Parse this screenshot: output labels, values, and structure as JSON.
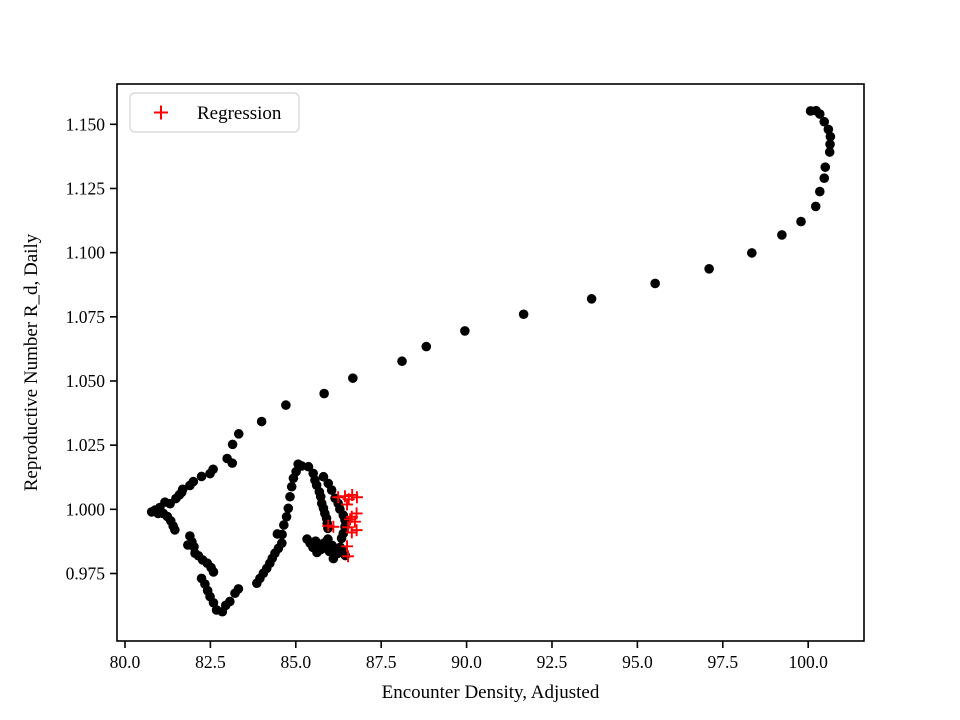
{
  "chart_data": {
    "type": "scatter",
    "title": "",
    "xlabel": "Encounter Density, Adjusted",
    "ylabel": "Reproductive Number R_d, Daily",
    "xlim": [
      79.766,
      101.634
    ],
    "ylim": [
      0.9487,
      1.1657
    ],
    "grid": false,
    "legend": {
      "position": "upper-left",
      "entries": [
        {
          "label": "Regression",
          "marker": "plus",
          "color": "#ff0000"
        }
      ]
    },
    "xticks": [
      {
        "v": 80.0,
        "label": "80.0"
      },
      {
        "v": 82.5,
        "label": "82.5"
      },
      {
        "v": 85.0,
        "label": "85.0"
      },
      {
        "v": 87.5,
        "label": "87.5"
      },
      {
        "v": 90.0,
        "label": "90.0"
      },
      {
        "v": 92.5,
        "label": "92.5"
      },
      {
        "v": 95.0,
        "label": "95.0"
      },
      {
        "v": 97.5,
        "label": "97.5"
      },
      {
        "v": 100.0,
        "label": "100.0"
      }
    ],
    "yticks": [
      {
        "v": 0.975,
        "label": "0.975"
      },
      {
        "v": 1.0,
        "label": "1.000"
      },
      {
        "v": 1.025,
        "label": "1.025"
      },
      {
        "v": 1.05,
        "label": "1.050"
      },
      {
        "v": 1.075,
        "label": "1.075"
      },
      {
        "v": 1.1,
        "label": "1.100"
      },
      {
        "v": 1.125,
        "label": "1.125"
      },
      {
        "v": 1.15,
        "label": "1.150"
      }
    ],
    "series": [
      {
        "name": "trajectory",
        "marker": "circle",
        "color": "#000000",
        "marker_radius": 4.8,
        "points": [
          [
            100.07,
            1.1552
          ],
          [
            100.23,
            1.1553
          ],
          [
            100.34,
            1.154
          ],
          [
            100.47,
            1.151
          ],
          [
            100.59,
            1.148
          ],
          [
            100.65,
            1.1452
          ],
          [
            100.64,
            1.1422
          ],
          [
            100.63,
            1.1392
          ],
          [
            100.5,
            1.1333
          ],
          [
            100.47,
            1.129
          ],
          [
            100.34,
            1.1238
          ],
          [
            100.22,
            1.118
          ],
          [
            99.79,
            1.1121
          ],
          [
            99.23,
            1.1069
          ],
          [
            98.35,
            1.0999
          ],
          [
            97.1,
            1.0937
          ],
          [
            95.52,
            1.088
          ],
          [
            93.66,
            1.082
          ],
          [
            91.67,
            1.076
          ],
          [
            89.95,
            1.0695
          ],
          [
            88.82,
            1.0634
          ],
          [
            88.11,
            1.0577
          ],
          [
            86.67,
            1.0511
          ],
          [
            85.83,
            1.0451
          ],
          [
            84.71,
            1.0406
          ],
          [
            84.0,
            1.0342
          ],
          [
            83.33,
            1.0294
          ],
          [
            83.15,
            1.0253
          ],
          [
            82.99,
            1.0198
          ],
          [
            83.14,
            1.018
          ],
          [
            82.58,
            1.0156
          ],
          [
            82.49,
            1.0139
          ],
          [
            82.24,
            1.0128
          ],
          [
            82.0,
            1.0108
          ],
          [
            81.9,
            1.0093
          ],
          [
            81.69,
            1.0078
          ],
          [
            81.66,
            1.0066
          ],
          [
            81.59,
            1.0056
          ],
          [
            81.49,
            1.0042
          ],
          [
            81.32,
            1.0022
          ],
          [
            81.17,
            1.0028
          ],
          [
            81.02,
            1.0007
          ],
          [
            80.88,
            0.9997
          ],
          [
            80.78,
            0.999
          ],
          [
            80.97,
            0.9984
          ],
          [
            81.12,
            0.9984
          ],
          [
            81.24,
            0.9972
          ],
          [
            81.34,
            0.9955
          ],
          [
            81.41,
            0.9935
          ],
          [
            81.46,
            0.992
          ],
          [
            81.9,
            0.9896
          ],
          [
            81.84,
            0.9861
          ],
          [
            81.96,
            0.9873
          ],
          [
            82.02,
            0.9854
          ],
          [
            82.05,
            0.9829
          ],
          [
            82.15,
            0.9819
          ],
          [
            82.27,
            0.9803
          ],
          [
            82.41,
            0.979
          ],
          [
            82.52,
            0.9773
          ],
          [
            82.59,
            0.9756
          ],
          [
            82.24,
            0.9731
          ],
          [
            82.34,
            0.9709
          ],
          [
            82.42,
            0.9683
          ],
          [
            82.49,
            0.966
          ],
          [
            82.59,
            0.9636
          ],
          [
            82.68,
            0.9608
          ],
          [
            82.85,
            0.9601
          ],
          [
            82.95,
            0.9626
          ],
          [
            83.07,
            0.9641
          ],
          [
            83.22,
            0.9673
          ],
          [
            83.32,
            0.969
          ],
          [
            83.86,
            0.9712
          ],
          [
            83.95,
            0.9731
          ],
          [
            84.05,
            0.9751
          ],
          [
            84.15,
            0.977
          ],
          [
            84.24,
            0.979
          ],
          [
            84.31,
            0.9809
          ],
          [
            84.39,
            0.9829
          ],
          [
            84.49,
            0.9848
          ],
          [
            84.59,
            0.9868
          ],
          [
            84.46,
            0.9904
          ],
          [
            84.6,
            0.9902
          ],
          [
            84.65,
            0.9939
          ],
          [
            84.73,
            0.9971
          ],
          [
            84.78,
            1.0004
          ],
          [
            84.83,
            1.0049
          ],
          [
            84.88,
            1.0088
          ],
          [
            84.93,
            1.0121
          ],
          [
            85.01,
            1.0147
          ],
          [
            85.07,
            1.0176
          ],
          [
            85.17,
            1.0169
          ],
          [
            85.37,
            1.0166
          ],
          [
            85.51,
            1.014
          ],
          [
            85.56,
            1.0114
          ],
          [
            85.61,
            1.0094
          ],
          [
            85.69,
            1.0068
          ],
          [
            85.73,
            1.0049
          ],
          [
            85.76,
            1.0023
          ],
          [
            85.81,
            1.0004
          ],
          [
            85.85,
            0.9984
          ],
          [
            85.9,
            0.9965
          ],
          [
            85.92,
            0.9945
          ],
          [
            85.94,
            0.9926
          ],
          [
            85.81,
            1.0127
          ],
          [
            85.95,
            1.0101
          ],
          [
            86.05,
            1.0075
          ],
          [
            86.15,
            1.0043
          ],
          [
            86.24,
            1.0023
          ],
          [
            86.29,
            1.0001
          ],
          [
            86.39,
            0.9977
          ],
          [
            86.44,
            0.9958
          ],
          [
            86.44,
            0.9932
          ],
          [
            86.39,
            0.9906
          ],
          [
            86.34,
            0.9887
          ],
          [
            85.33,
            0.9884
          ],
          [
            85.42,
            0.9868
          ],
          [
            85.5,
            0.9852
          ],
          [
            85.58,
            0.9876
          ],
          [
            85.66,
            0.986
          ],
          [
            85.74,
            0.9844
          ],
          [
            85.82,
            0.9868
          ],
          [
            85.9,
            0.9852
          ],
          [
            85.98,
            0.9836
          ],
          [
            86.06,
            0.986
          ],
          [
            86.14,
            0.9844
          ],
          [
            86.22,
            0.9828
          ],
          [
            86.3,
            0.9852
          ],
          [
            86.38,
            0.9836
          ],
          [
            86.45,
            0.982
          ],
          [
            85.62,
            0.9832
          ],
          [
            85.94,
            0.9884
          ],
          [
            86.1,
            0.9808
          ]
        ]
      },
      {
        "name": "Regression",
        "marker": "plus",
        "color": "#ff0000",
        "marker_arm": 6,
        "stroke_width": 1.9,
        "points": [
          [
            86.24,
            1.0047
          ],
          [
            86.44,
            1.0051
          ],
          [
            86.55,
            1.0039
          ],
          [
            86.65,
            1.0056
          ],
          [
            86.79,
            1.0047
          ],
          [
            86.5,
            1.0019
          ],
          [
            86.78,
            0.9984
          ],
          [
            86.64,
            0.9971
          ],
          [
            86.73,
            0.9952
          ],
          [
            86.59,
            0.9961
          ],
          [
            85.95,
            0.9936
          ],
          [
            86.1,
            0.9932
          ],
          [
            86.53,
            0.993
          ],
          [
            86.64,
            0.991
          ],
          [
            86.78,
            0.9919
          ],
          [
            86.5,
            0.9856
          ],
          [
            86.53,
            0.9817
          ]
        ]
      }
    ],
    "colors": {
      "frame": "#000000",
      "background": "#ffffff",
      "legend_border": "#d4d4d4",
      "scatter": "#000000",
      "regression": "#ff0000"
    }
  }
}
